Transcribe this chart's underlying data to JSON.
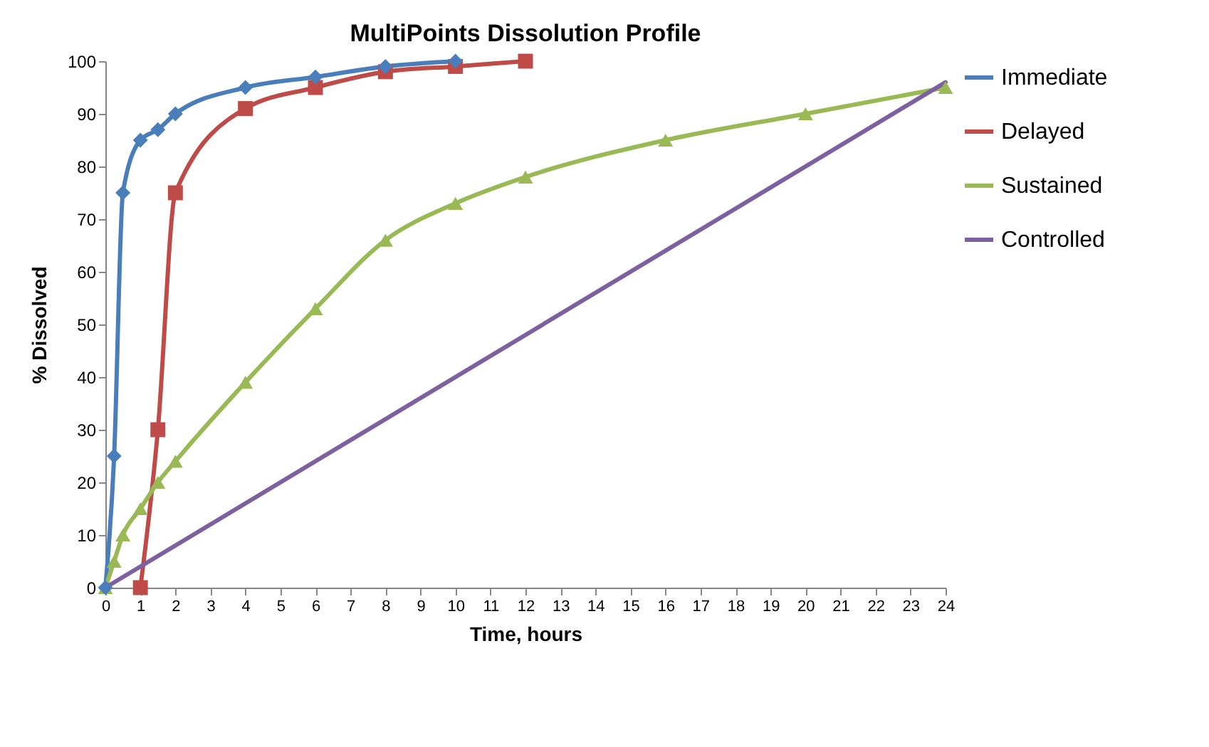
{
  "chart_data": {
    "type": "line",
    "title": "MultiPoints Dissolution Profile",
    "xlabel": "Time, hours",
    "ylabel": "% Dissolved",
    "xlim": [
      0,
      24
    ],
    "xticks": [
      0,
      1,
      2,
      3,
      4,
      5,
      6,
      7,
      8,
      9,
      10,
      11,
      12,
      13,
      14,
      15,
      16,
      17,
      18,
      19,
      20,
      21,
      22,
      23,
      24
    ],
    "ylim": [
      0,
      100
    ],
    "yticks": [
      0,
      10,
      20,
      30,
      40,
      50,
      60,
      70,
      80,
      90,
      100
    ],
    "grid": false,
    "legend": "right",
    "series": [
      {
        "name": "Immediate",
        "color": "#4a7ebb",
        "marker": "diamond",
        "x": [
          0,
          0.25,
          0.5,
          1,
          1.5,
          2,
          4,
          6,
          8,
          10
        ],
        "values": [
          0,
          25,
          75,
          85,
          87,
          90,
          95,
          97,
          99,
          100
        ]
      },
      {
        "name": "Delayed",
        "color": "#be4b48",
        "marker": "square",
        "x": [
          1,
          1.5,
          2,
          4,
          6,
          8,
          10,
          12
        ],
        "values": [
          0,
          30,
          75,
          91,
          95,
          98,
          99,
          100
        ]
      },
      {
        "name": "Sustained",
        "color": "#98b954",
        "marker": "triangle",
        "x": [
          0,
          0.25,
          0.5,
          1,
          1.5,
          2,
          4,
          6,
          8,
          10,
          12,
          16,
          20,
          24
        ],
        "values": [
          0,
          5,
          10,
          15,
          20,
          24,
          39,
          53,
          66,
          73,
          78,
          85,
          90,
          95
        ]
      },
      {
        "name": "Controlled",
        "color": "#7d60a0",
        "marker": "none",
        "x": [
          0,
          24
        ],
        "values": [
          0,
          96
        ]
      }
    ]
  }
}
